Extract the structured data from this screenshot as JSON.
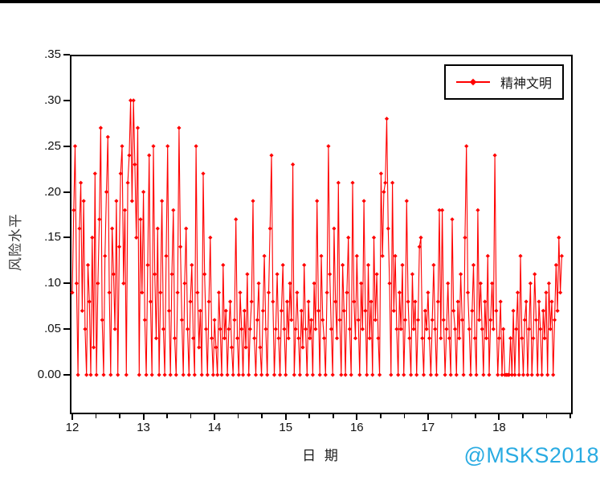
{
  "page": {
    "watermark": "@MSKS2018",
    "watermark_color": "#29ABE2",
    "background": "#FFFFFF",
    "topbar_color": "#000000"
  },
  "chart_data": {
    "type": "line",
    "title": "",
    "xlabel": "日  期",
    "ylabel": "风险水平",
    "grid": false,
    "legend_position": "upper right",
    "frame": true,
    "xlim": [
      12,
      19.06
    ],
    "ylim": [
      -0.043,
      0.35
    ],
    "x_axis": {
      "title": "日  期",
      "major_ticks": [
        {
          "v": 12,
          "label": "12"
        },
        {
          "v": 13,
          "label": "13"
        },
        {
          "v": 14,
          "label": "14"
        },
        {
          "v": 15,
          "label": "15"
        },
        {
          "v": 16,
          "label": "16"
        },
        {
          "v": 17,
          "label": "17"
        },
        {
          "v": 18,
          "label": "18"
        }
      ],
      "minor_ticks_per_unit": 3,
      "minor_tick_end": 19
    },
    "y_axis": {
      "title": "风险水平",
      "ticks": [
        {
          "v": 0.0,
          "label": "0.00"
        },
        {
          "v": 0.05,
          "label": ".05"
        },
        {
          "v": 0.1,
          "label": ".10"
        },
        {
          "v": 0.15,
          "label": ".15"
        },
        {
          "v": 0.2,
          "label": ".20"
        },
        {
          "v": 0.25,
          "label": ".25"
        },
        {
          "v": 0.3,
          "label": ".30"
        },
        {
          "v": 0.35,
          "label": ".35"
        }
      ]
    },
    "series": [
      {
        "name": "精神文明",
        "color": "#FF0000",
        "marker": "diamond",
        "x_start": 12,
        "x_step": 0.02,
        "values": [
          0.09,
          0.18,
          0.25,
          0.1,
          0.0,
          0.16,
          0.21,
          0.07,
          0.19,
          0.05,
          0.0,
          0.12,
          0.08,
          0.0,
          0.15,
          0.03,
          0.22,
          0.0,
          0.1,
          0.17,
          0.27,
          0.06,
          0.0,
          0.13,
          0.2,
          0.26,
          0.09,
          0.0,
          0.16,
          0.11,
          0.05,
          0.19,
          0.0,
          0.14,
          0.22,
          0.25,
          0.1,
          0.18,
          0.0,
          0.21,
          0.24,
          0.3,
          0.19,
          0.3,
          0.23,
          0.15,
          0.27,
          0.0,
          0.17,
          0.09,
          0.2,
          0.06,
          0.0,
          0.12,
          0.24,
          0.08,
          0.0,
          0.25,
          0.11,
          0.04,
          0.16,
          0.0,
          0.09,
          0.19,
          0.05,
          0.0,
          0.13,
          0.25,
          0.07,
          0.0,
          0.11,
          0.18,
          0.04,
          0.0,
          0.09,
          0.27,
          0.14,
          0.06,
          0.0,
          0.1,
          0.16,
          0.05,
          0.0,
          0.08,
          0.12,
          0.04,
          0.0,
          0.25,
          0.09,
          0.03,
          0.07,
          0.0,
          0.22,
          0.11,
          0.05,
          0.0,
          0.08,
          0.15,
          0.04,
          0.0,
          0.06,
          0.03,
          0.0,
          0.09,
          0.05,
          0.0,
          0.12,
          0.04,
          0.07,
          0.0,
          0.05,
          0.08,
          0.03,
          0.0,
          0.06,
          0.17,
          0.04,
          0.0,
          0.09,
          0.05,
          0.0,
          0.07,
          0.03,
          0.11,
          0.0,
          0.05,
          0.08,
          0.19,
          0.04,
          0.0,
          0.06,
          0.1,
          0.03,
          0.0,
          0.07,
          0.13,
          0.05,
          0.0,
          0.09,
          0.16,
          0.24,
          0.08,
          0.0,
          0.05,
          0.11,
          0.04,
          0.0,
          0.07,
          0.12,
          0.05,
          0.0,
          0.08,
          0.04,
          0.1,
          0.06,
          0.23,
          0.0,
          0.05,
          0.09,
          0.04,
          0.0,
          0.07,
          0.03,
          0.12,
          0.05,
          0.0,
          0.08,
          0.04,
          0.06,
          0.0,
          0.1,
          0.05,
          0.19,
          0.07,
          0.0,
          0.13,
          0.06,
          0.04,
          0.0,
          0.09,
          0.25,
          0.11,
          0.05,
          0.0,
          0.16,
          0.08,
          0.04,
          0.21,
          0.06,
          0.0,
          0.12,
          0.07,
          0.0,
          0.09,
          0.15,
          0.05,
          0.0,
          0.21,
          0.08,
          0.04,
          0.13,
          0.06,
          0.0,
          0.1,
          0.05,
          0.19,
          0.07,
          0.0,
          0.12,
          0.04,
          0.08,
          0.0,
          0.15,
          0.06,
          0.11,
          0.04,
          0.0,
          0.22,
          0.13,
          0.2,
          0.21,
          0.28,
          0.16,
          0.1,
          0.0,
          0.21,
          0.07,
          0.13,
          0.05,
          0.0,
          0.09,
          0.05,
          0.12,
          0.0,
          0.06,
          0.19,
          0.08,
          0.04,
          0.0,
          0.11,
          0.05,
          0.08,
          0.0,
          0.06,
          0.14,
          0.15,
          0.04,
          0.0,
          0.07,
          0.05,
          0.09,
          0.04,
          0.0,
          0.06,
          0.12,
          0.05,
          0.0,
          0.08,
          0.18,
          0.04,
          0.18,
          0.06,
          0.0,
          0.05,
          0.1,
          0.04,
          0.0,
          0.17,
          0.07,
          0.05,
          0.0,
          0.08,
          0.04,
          0.11,
          0.06,
          0.0,
          0.15,
          0.25,
          0.09,
          0.05,
          0.0,
          0.07,
          0.12,
          0.04,
          0.0,
          0.18,
          0.06,
          0.1,
          0.05,
          0.0,
          0.08,
          0.04,
          0.13,
          0.0,
          0.06,
          0.1,
          0.05,
          0.24,
          0.07,
          0.0,
          0.04,
          0.08,
          0.0,
          0.05,
          0.0,
          0.0,
          0.0,
          0.0,
          0.04,
          0.0,
          0.07,
          0.0,
          0.05,
          0.09,
          0.0,
          0.13,
          0.04,
          0.0,
          0.06,
          0.08,
          0.0,
          0.05,
          0.1,
          0.0,
          0.04,
          0.11,
          0.06,
          0.0,
          0.08,
          0.05,
          0.0,
          0.07,
          0.04,
          0.09,
          0.0,
          0.1,
          0.05,
          0.08,
          0.0,
          0.06,
          0.12,
          0.07,
          0.15,
          0.09,
          0.13
        ]
      }
    ]
  }
}
